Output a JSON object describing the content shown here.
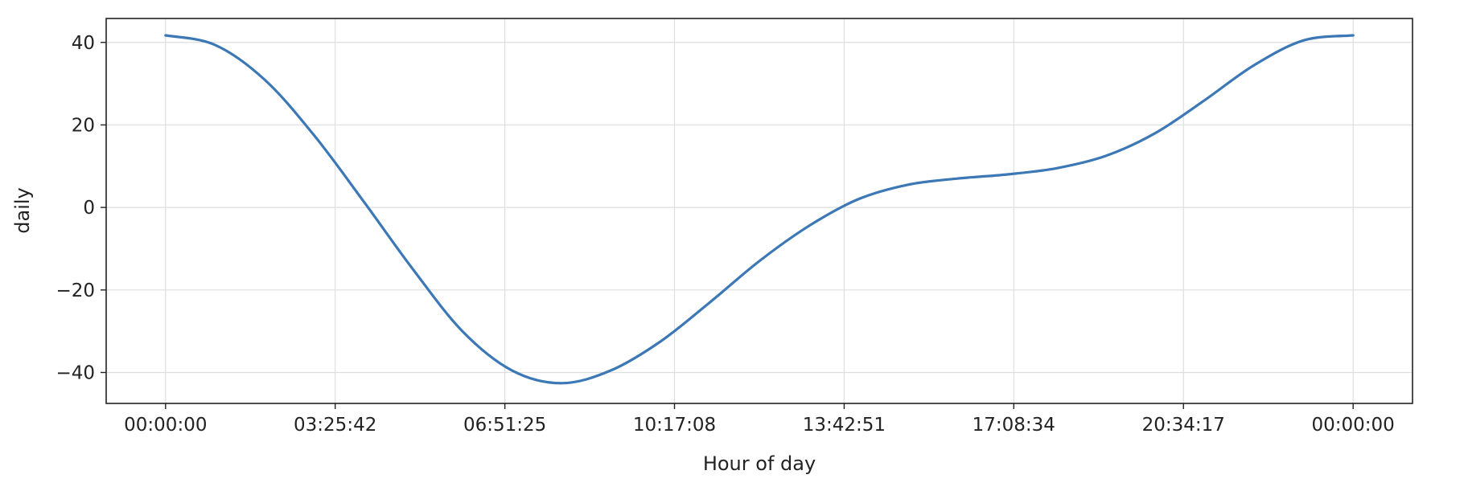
{
  "chart_data": {
    "type": "line",
    "title": "",
    "xlabel": "Hour of day",
    "ylabel": "daily",
    "x_ticks": [
      "00:00:00",
      "03:25:42",
      "06:51:25",
      "10:17:08",
      "13:42:51",
      "17:08:34",
      "20:34:17",
      "00:00:00"
    ],
    "x_tick_hours": [
      0,
      3.428,
      6.857,
      10.285,
      13.714,
      17.142,
      20.571,
      24
    ],
    "xlim": [
      -1.2,
      25.2
    ],
    "y_ticks": [
      "40",
      "20",
      "0",
      "−20",
      "−40"
    ],
    "y_tick_values": [
      40,
      20,
      0,
      -20,
      -40
    ],
    "ylim": [
      -47.5,
      45.8
    ],
    "grid": true,
    "color": "#3b78b5",
    "series": [
      {
        "x": [
          0,
          1,
          2,
          3,
          4,
          5,
          6,
          7,
          8,
          9,
          10,
          11,
          12,
          13,
          14,
          15,
          16,
          17,
          18,
          19,
          20,
          21,
          22,
          23,
          24
        ],
        "y": [
          41.7,
          39.4,
          31.0,
          17.5,
          1.5,
          -15.0,
          -30.0,
          -39.5,
          -42.6,
          -39.5,
          -32.5,
          -23.0,
          -13.0,
          -4.5,
          2.0,
          5.5,
          7.0,
          8.0,
          9.5,
          12.5,
          18.0,
          26.0,
          34.5,
          40.5,
          41.7
        ]
      }
    ]
  }
}
